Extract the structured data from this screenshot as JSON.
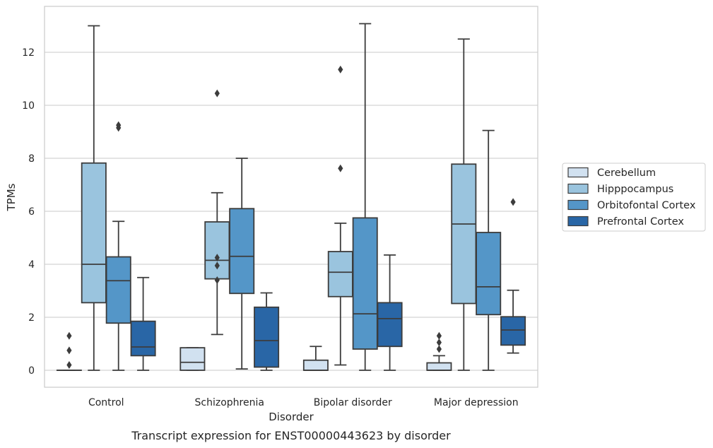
{
  "chart_data": {
    "type": "box",
    "title": "",
    "caption": "Transcript expression for ENST00000443623 by disorder",
    "xlabel": "Disorder",
    "ylabel": "TPMs",
    "ylim": [
      -0.6,
      13.4
    ],
    "yticks": [
      0,
      2,
      4,
      6,
      8,
      10,
      12
    ],
    "grid": "horizontal",
    "legend_position": "right",
    "categories": [
      "Control",
      "Schizophrenia",
      "Bipolar disorder",
      "Major depression"
    ],
    "series": [
      {
        "name": "Cerebellum",
        "color": "#d1e1f0",
        "boxes": [
          {
            "min": 0,
            "q1": 0,
            "median": 0,
            "q3": 0,
            "max": 0,
            "outliers": [
              0.2,
              0.75,
              1.3
            ]
          },
          {
            "min": 0,
            "q1": 0,
            "median": 0.3,
            "q3": 0.85,
            "max": 0.85,
            "outliers": []
          },
          {
            "min": 0,
            "q1": 0,
            "median": 0,
            "q3": 0.38,
            "max": 0.9,
            "outliers": []
          },
          {
            "min": 0,
            "q1": 0,
            "median": 0,
            "q3": 0.28,
            "max": 0.55,
            "outliers": [
              0.8,
              1.05,
              1.3
            ]
          }
        ]
      },
      {
        "name": "Hipppocampus",
        "color": "#9ac4de",
        "boxes": [
          {
            "min": 0,
            "q1": 2.55,
            "median": 4.0,
            "q3": 7.82,
            "max": 13.0,
            "outliers": []
          },
          {
            "min": 1.35,
            "q1": 3.45,
            "median": 4.15,
            "q3": 5.6,
            "max": 6.7,
            "outliers": [
              3.4,
              3.95,
              4.25,
              10.45
            ]
          },
          {
            "min": 0.2,
            "q1": 2.78,
            "median": 3.7,
            "q3": 4.48,
            "max": 5.55,
            "outliers": [
              7.62,
              11.35
            ]
          },
          {
            "min": 0,
            "q1": 2.52,
            "median": 5.52,
            "q3": 7.78,
            "max": 12.5,
            "outliers": []
          }
        ]
      },
      {
        "name": "Orbitofontal Cortex",
        "color": "#5496c8",
        "boxes": [
          {
            "min": 0,
            "q1": 1.78,
            "median": 3.38,
            "q3": 4.28,
            "max": 5.62,
            "outliers": [
              9.15,
              9.25
            ]
          },
          {
            "min": 0.05,
            "q1": 2.9,
            "median": 4.3,
            "q3": 6.1,
            "max": 8.0,
            "outliers": []
          },
          {
            "min": 0,
            "q1": 0.8,
            "median": 2.13,
            "q3": 5.75,
            "max": 13.08,
            "outliers": []
          },
          {
            "min": 0,
            "q1": 2.1,
            "median": 3.15,
            "q3": 5.2,
            "max": 9.05,
            "outliers": []
          }
        ]
      },
      {
        "name": "Prefrontal Cortex",
        "color": "#2966a6",
        "boxes": [
          {
            "min": 0,
            "q1": 0.55,
            "median": 0.88,
            "q3": 1.85,
            "max": 3.5,
            "outliers": []
          },
          {
            "min": 0,
            "q1": 0.12,
            "median": 1.12,
            "q3": 2.38,
            "max": 2.92,
            "outliers": []
          },
          {
            "min": 0,
            "q1": 0.9,
            "median": 1.95,
            "q3": 2.55,
            "max": 4.35,
            "outliers": []
          },
          {
            "min": 0.65,
            "q1": 0.95,
            "median": 1.52,
            "q3": 2.02,
            "max": 3.02,
            "outliers": [
              6.35
            ]
          }
        ]
      }
    ]
  }
}
